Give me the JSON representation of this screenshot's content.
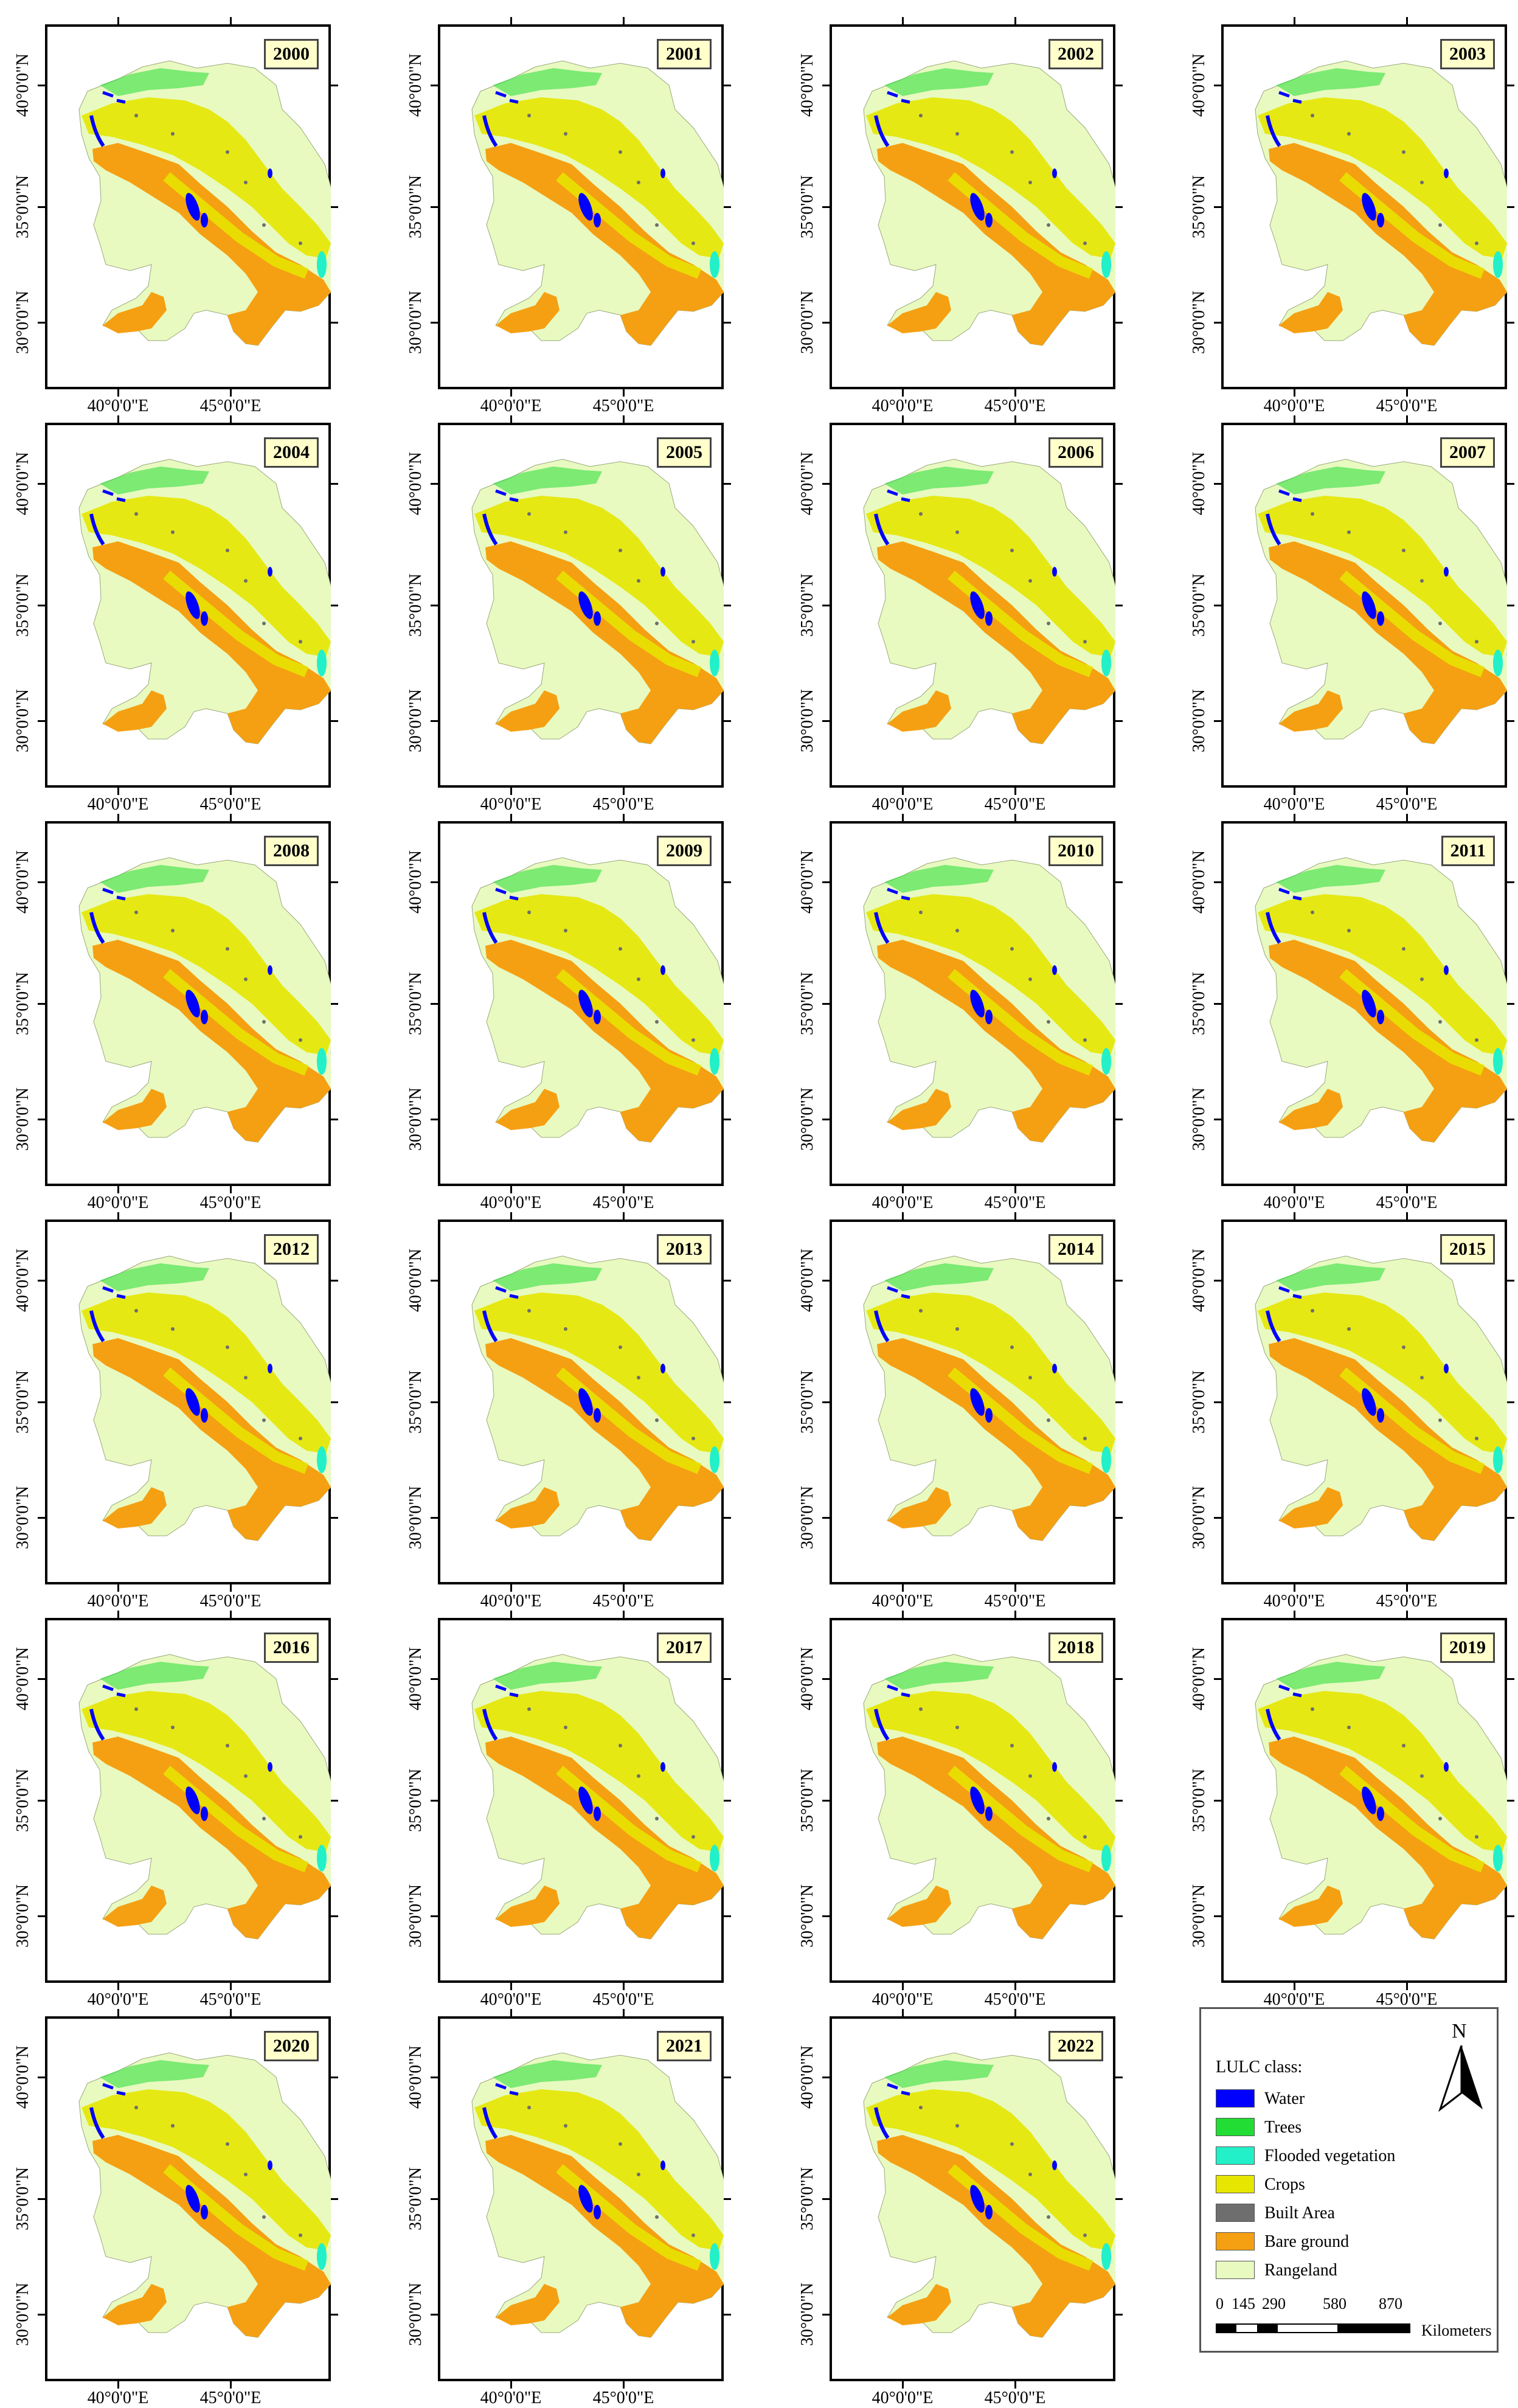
{
  "axes": {
    "lat_labels": [
      "40°0'0\"N",
      "35°0'0\"N",
      "30°0'0\"N"
    ],
    "lon_labels": [
      "40°0'0\"E",
      "45°0'0\"E"
    ]
  },
  "panels": [
    {
      "year": "2000"
    },
    {
      "year": "2001"
    },
    {
      "year": "2002"
    },
    {
      "year": "2003"
    },
    {
      "year": "2004"
    },
    {
      "year": "2005"
    },
    {
      "year": "2006"
    },
    {
      "year": "2007"
    },
    {
      "year": "2008"
    },
    {
      "year": "2009"
    },
    {
      "year": "2010"
    },
    {
      "year": "2011"
    },
    {
      "year": "2012"
    },
    {
      "year": "2013"
    },
    {
      "year": "2014"
    },
    {
      "year": "2015"
    },
    {
      "year": "2016"
    },
    {
      "year": "2017"
    },
    {
      "year": "2018"
    },
    {
      "year": "2019"
    },
    {
      "year": "2020"
    },
    {
      "year": "2021"
    },
    {
      "year": "2022"
    }
  ],
  "legend": {
    "title": "LULC class:",
    "classes": [
      {
        "label": "Water",
        "color": "#0000ff"
      },
      {
        "label": "Trees",
        "color": "#22dd33"
      },
      {
        "label": "Flooded vegetation",
        "color": "#22f0c8"
      },
      {
        "label": "Crops",
        "color": "#e6e600"
      },
      {
        "label": "Built Area",
        "color": "#6e6e6e"
      },
      {
        "label": "Bare ground",
        "color": "#f5a012"
      },
      {
        "label": "Rangeland",
        "color": "#e8fac0"
      }
    ],
    "north": "N",
    "scale_ticks": [
      "0",
      "145",
      "290",
      "580",
      "870"
    ],
    "scale_unit": "Kilometers"
  }
}
